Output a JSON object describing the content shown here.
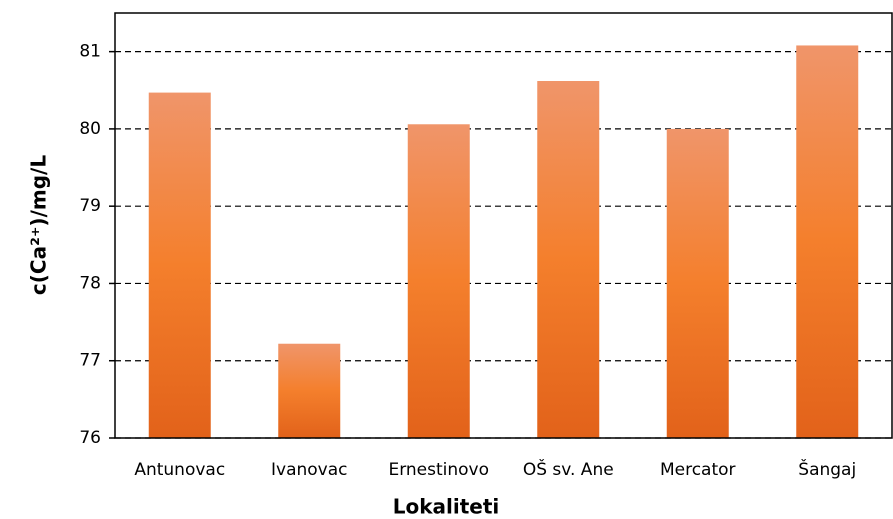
{
  "chart_data": {
    "type": "bar",
    "x_label": "Lokaliteti",
    "y_label": "c(Ca²⁺)/mg/L",
    "categories": [
      "Antunovac",
      "Ivanovac",
      "Ernestinovo",
      "OŠ sv. Ane",
      "Mercator",
      "Šangaj"
    ],
    "values": [
      80.47,
      77.22,
      80.06,
      80.62,
      80.0,
      81.08
    ],
    "color": "#f07c2c",
    "ylim": [
      76,
      81.5
    ],
    "yticks": [
      76,
      77,
      78,
      79,
      80,
      81
    ],
    "grid": true
  }
}
